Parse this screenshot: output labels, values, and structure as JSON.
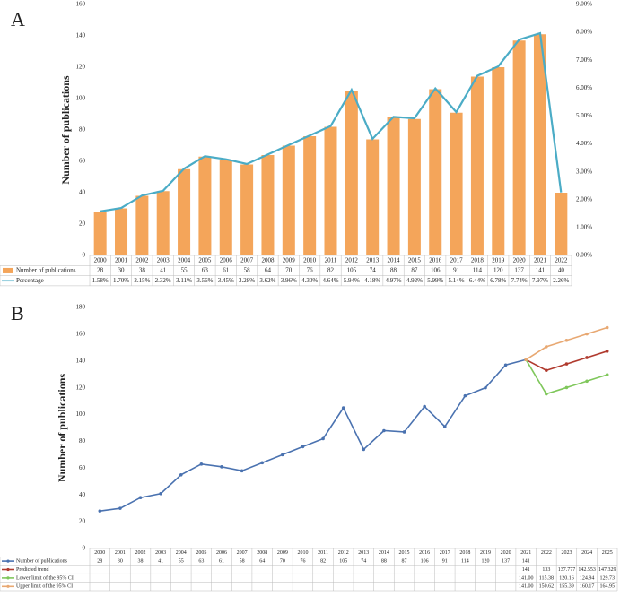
{
  "chart_data": [
    {
      "type": "bar",
      "label": "A",
      "ylabel": "Number of publications",
      "categories": [
        "2000",
        "2001",
        "2002",
        "2003",
        "2004",
        "2005",
        "2006",
        "2007",
        "2008",
        "2009",
        "2010",
        "2011",
        "2012",
        "2013",
        "2014",
        "2015",
        "2016",
        "2017",
        "2018",
        "2019",
        "2020",
        "2021",
        "2022"
      ],
      "series": [
        {
          "name": "Number of publications",
          "type": "bar",
          "color": "#f4a55a",
          "values": [
            28,
            30,
            38,
            41,
            55,
            63,
            61,
            58,
            64,
            70,
            76,
            82,
            105,
            74,
            88,
            87,
            106,
            91,
            114,
            120,
            137,
            141,
            40
          ]
        },
        {
          "name": "Percentage",
          "type": "line",
          "axis": "y2",
          "color": "#4bacc6",
          "values": [
            1.58,
            1.7,
            2.15,
            2.32,
            3.11,
            3.56,
            3.45,
            3.28,
            3.62,
            3.96,
            4.3,
            4.64,
            5.94,
            4.18,
            4.97,
            4.92,
            5.99,
            5.14,
            6.44,
            6.78,
            7.74,
            7.97,
            2.26
          ],
          "value_labels": [
            "1.58%",
            "1.70%",
            "2.15%",
            "2.32%",
            "3.11%",
            "3.56%",
            "3.45%",
            "3.28%",
            "3.62%",
            "3.96%",
            "4.30%",
            "4.64%",
            "5.94%",
            "4.18%",
            "4.97%",
            "4.92%",
            "5.99%",
            "5.14%",
            "6.44%",
            "6.78%",
            "7.74%",
            "7.97%",
            "2.26%"
          ]
        }
      ],
      "ylim": [
        0,
        160
      ],
      "yticks": [
        0,
        20,
        40,
        60,
        80,
        100,
        120,
        140,
        160
      ],
      "y2lim": [
        0,
        9
      ],
      "y2ticks": [
        {
          "value": 0,
          "label": "0.00%"
        },
        {
          "value": 1,
          "label": "1.00%"
        },
        {
          "value": 2,
          "label": "2.00%"
        },
        {
          "value": 3,
          "label": "3.00%"
        },
        {
          "value": 4,
          "label": "4.00%"
        },
        {
          "value": 5,
          "label": "5.00%"
        },
        {
          "value": 6,
          "label": "6.00%"
        },
        {
          "value": 7,
          "label": "7.00%"
        },
        {
          "value": 8,
          "label": "8.00%"
        },
        {
          "value": 9,
          "label": "9.00%"
        }
      ],
      "grid": false
    },
    {
      "type": "line",
      "label": "B",
      "ylabel": "Number of publications",
      "categories": [
        "2000",
        "2001",
        "2002",
        "2003",
        "2004",
        "2005",
        "2006",
        "2007",
        "2008",
        "2009",
        "2010",
        "2011",
        "2012",
        "2013",
        "2014",
        "2015",
        "2016",
        "2017",
        "2018",
        "2019",
        "2020",
        "2021",
        "2022",
        "2023",
        "2024",
        "2025"
      ],
      "series": [
        {
          "name": "Number of publications",
          "type": "line",
          "color": "#4a72b0",
          "values": [
            28,
            30,
            38,
            41,
            55,
            63,
            61,
            58,
            64,
            70,
            76,
            82,
            105,
            74,
            88,
            87,
            106,
            91,
            114,
            120,
            137,
            141,
            null,
            null,
            null,
            null
          ]
        },
        {
          "name": "Predicted trend",
          "type": "line",
          "color": "#b03a2e",
          "values": [
            null,
            null,
            null,
            null,
            null,
            null,
            null,
            null,
            null,
            null,
            null,
            null,
            null,
            null,
            null,
            null,
            null,
            null,
            null,
            null,
            null,
            141,
            133,
            137.777,
            142.553,
            147.329
          ]
        },
        {
          "name": "Lower limit of the 95% CI",
          "type": "line",
          "color": "#7fc75b",
          "values": [
            null,
            null,
            null,
            null,
            null,
            null,
            null,
            null,
            null,
            null,
            null,
            null,
            null,
            null,
            null,
            null,
            null,
            null,
            null,
            null,
            null,
            141.0,
            115.38,
            120.16,
            124.94,
            129.73
          ],
          "value_labels": [
            null,
            null,
            null,
            null,
            null,
            null,
            null,
            null,
            null,
            null,
            null,
            null,
            null,
            null,
            null,
            null,
            null,
            null,
            null,
            null,
            null,
            "141.00",
            "115.38",
            "120.16",
            "124.94",
            "129.73"
          ]
        },
        {
          "name": "Upper limit of the 95% CI",
          "type": "line",
          "color": "#e8a872",
          "values": [
            null,
            null,
            null,
            null,
            null,
            null,
            null,
            null,
            null,
            null,
            null,
            null,
            null,
            null,
            null,
            null,
            null,
            null,
            null,
            null,
            null,
            141.0,
            150.62,
            155.39,
            160.17,
            164.95
          ],
          "value_labels": [
            null,
            null,
            null,
            null,
            null,
            null,
            null,
            null,
            null,
            null,
            null,
            null,
            null,
            null,
            null,
            null,
            null,
            null,
            null,
            null,
            null,
            "141.00",
            "150.62",
            "155.39",
            "160.17",
            "164.95"
          ]
        }
      ],
      "ylim": [
        0,
        180
      ],
      "yticks": [
        0,
        20,
        40,
        60,
        80,
        100,
        120,
        140,
        160,
        180
      ],
      "grid": false
    }
  ]
}
